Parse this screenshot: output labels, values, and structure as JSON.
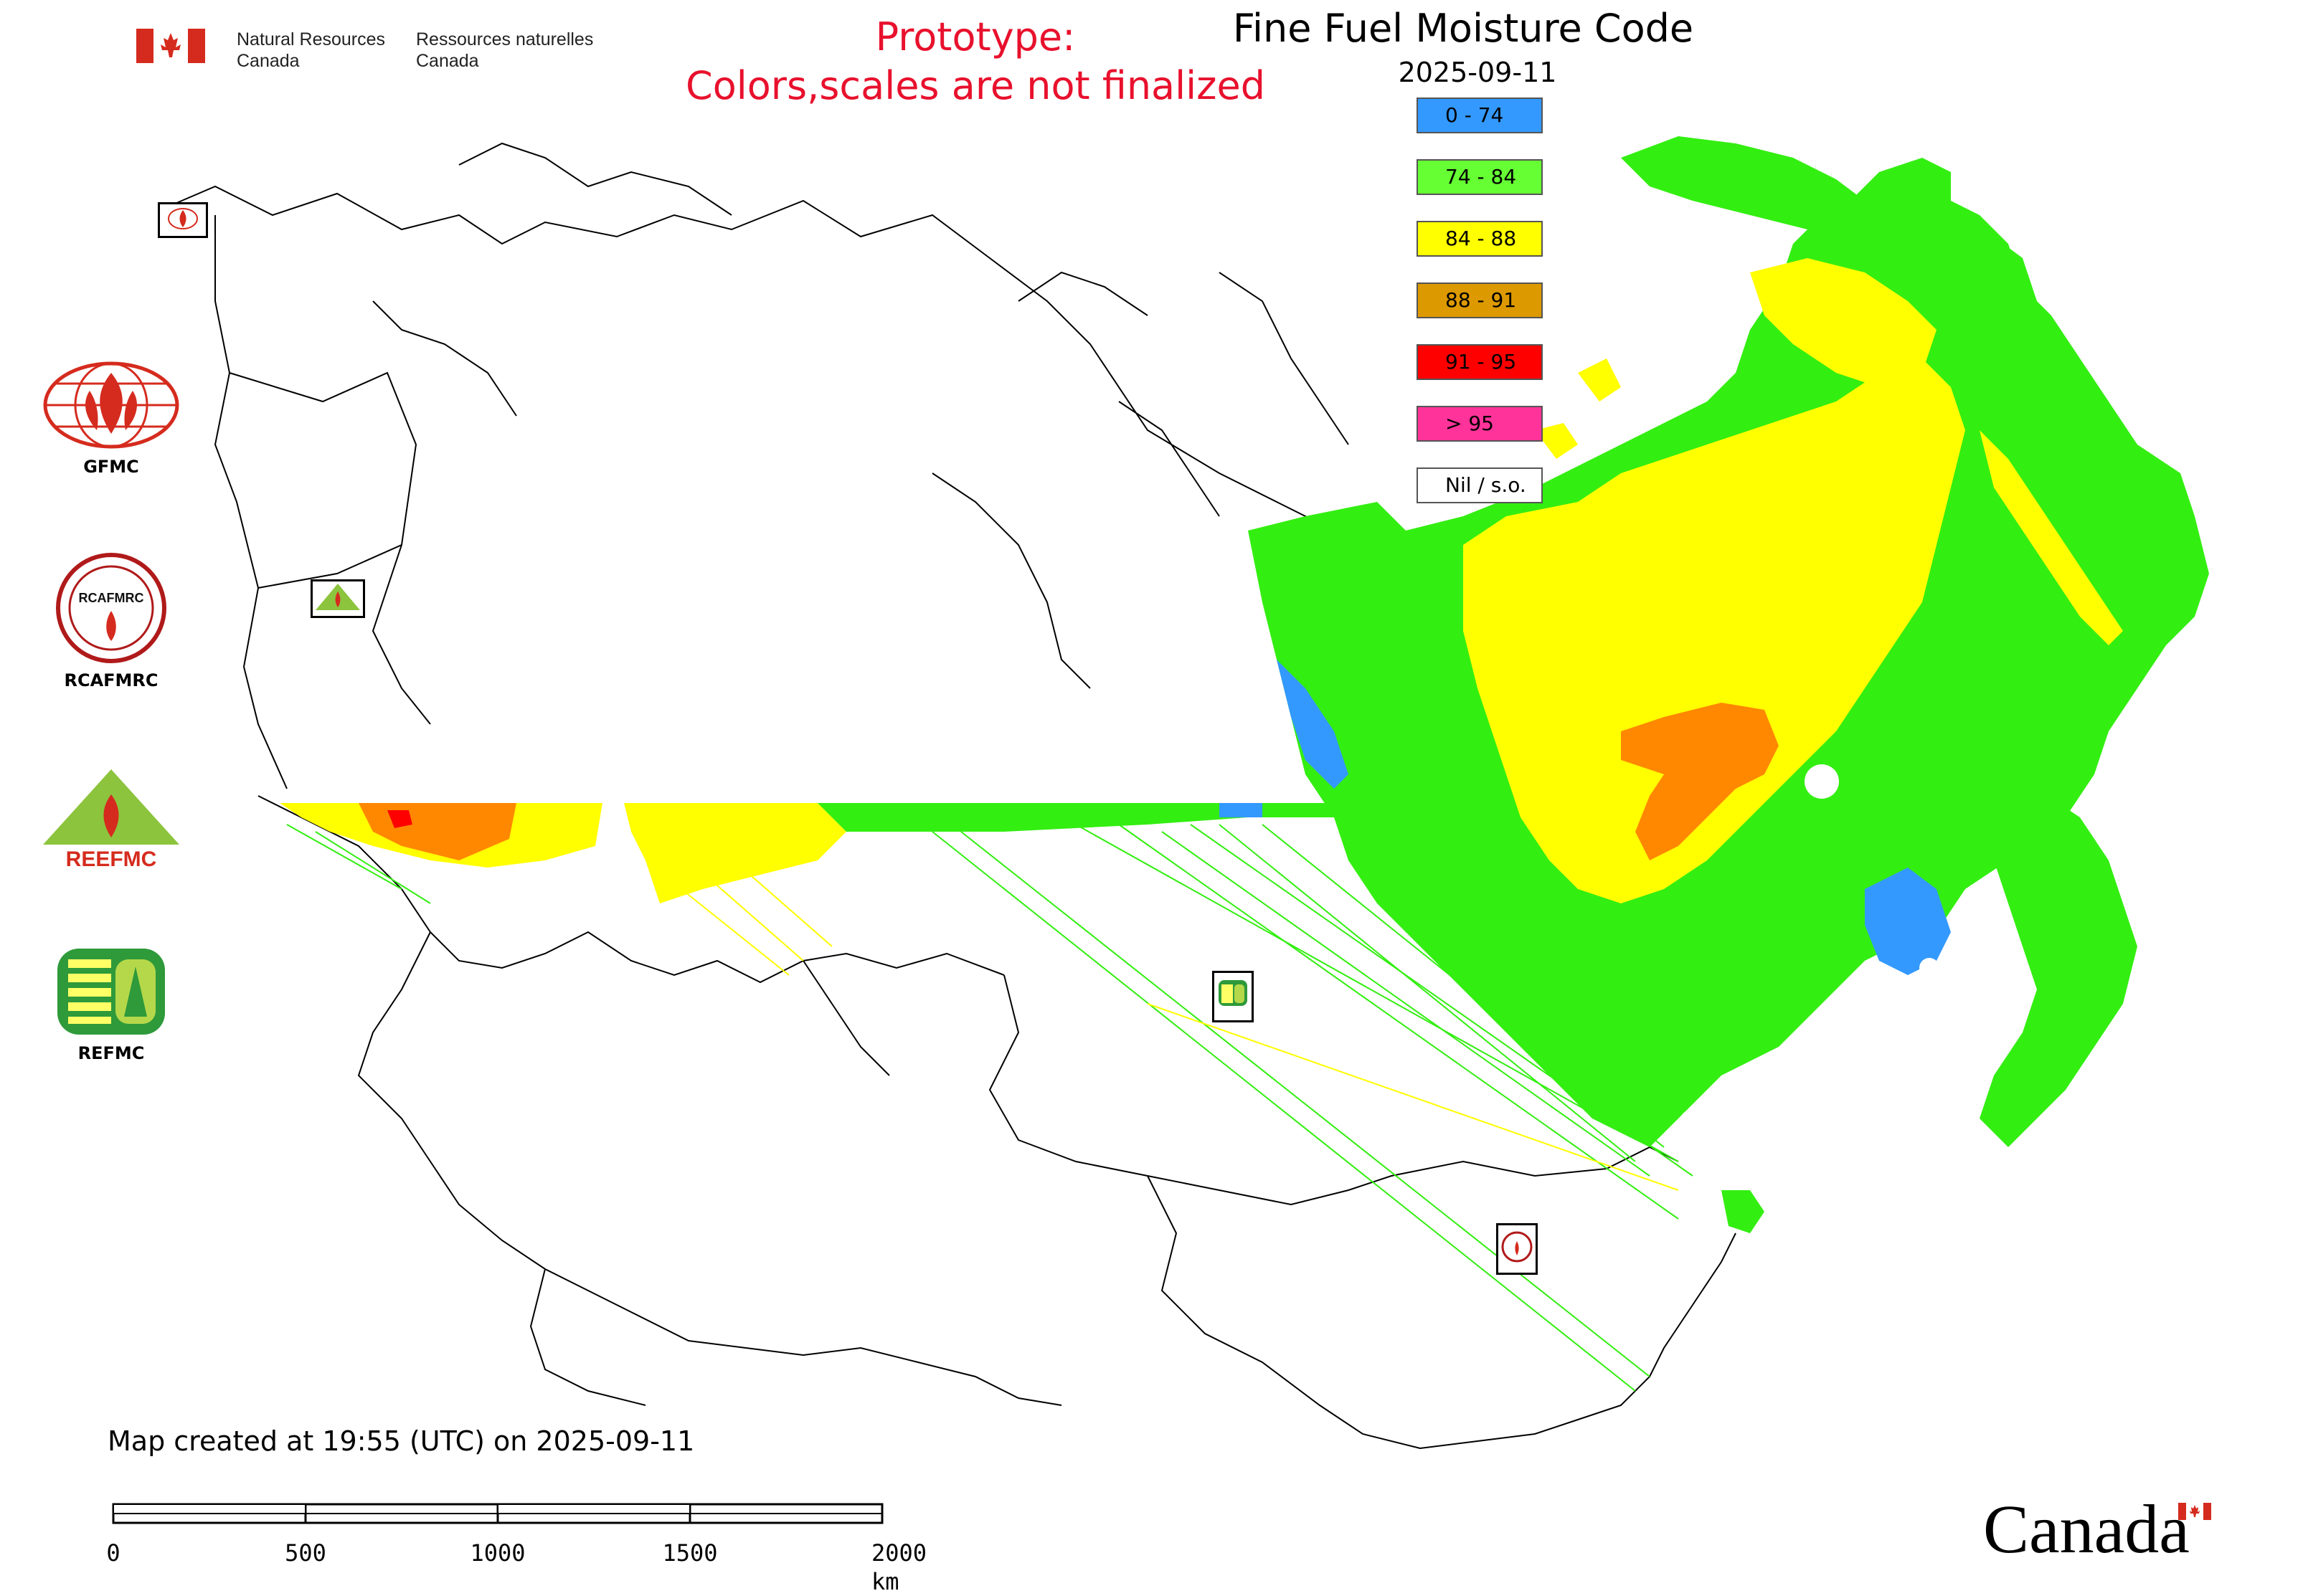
{
  "header": {
    "department_en_line1": "Natural Resources",
    "department_en_line2": "Canada",
    "department_fr_line1": "Ressources naturelles",
    "department_fr_line2": "Canada",
    "prototype_line1": "Prototype:",
    "prototype_line2": "Colors,scales are not finalized",
    "title": "Fine Fuel Moisture Code",
    "date": "2025-09-11"
  },
  "legend": {
    "items": [
      {
        "label": "0 - 74",
        "color": "#3399ff"
      },
      {
        "label": "74 - 84",
        "color": "#66ff33"
      },
      {
        "label": "84 - 88",
        "color": "#ffff00"
      },
      {
        "label": "88 - 91",
        "color": "#dd9900"
      },
      {
        "label": "91 - 95",
        "color": "#ff0000"
      },
      {
        "label": "> 95",
        "color": "#ff3399"
      },
      {
        "label": "Nil / s.o.",
        "color": "#ffffff"
      }
    ]
  },
  "organizations": {
    "gfmc": "GFMC",
    "rcafmrc": "RCAFMRC",
    "reefmc": "REEFMC",
    "refmc": "REFMC",
    "rcafmrc_logo_text": "RCAFMRC",
    "reefmc_logo_text": "REEFMC"
  },
  "footer": {
    "created": "Map created at 19:55 (UTC) on 2025-09-11",
    "scale_labels": [
      "0",
      "500",
      "1000",
      "1500",
      "2000 km"
    ],
    "wordmark": "Canada"
  },
  "colors": {
    "blue": "#3399ff",
    "green": "#33ee11",
    "yellow": "#ffff00",
    "orange": "#ff8800",
    "red": "#ff0000",
    "alert_text": "#e8112d",
    "flag_red": "#d52b1e"
  }
}
